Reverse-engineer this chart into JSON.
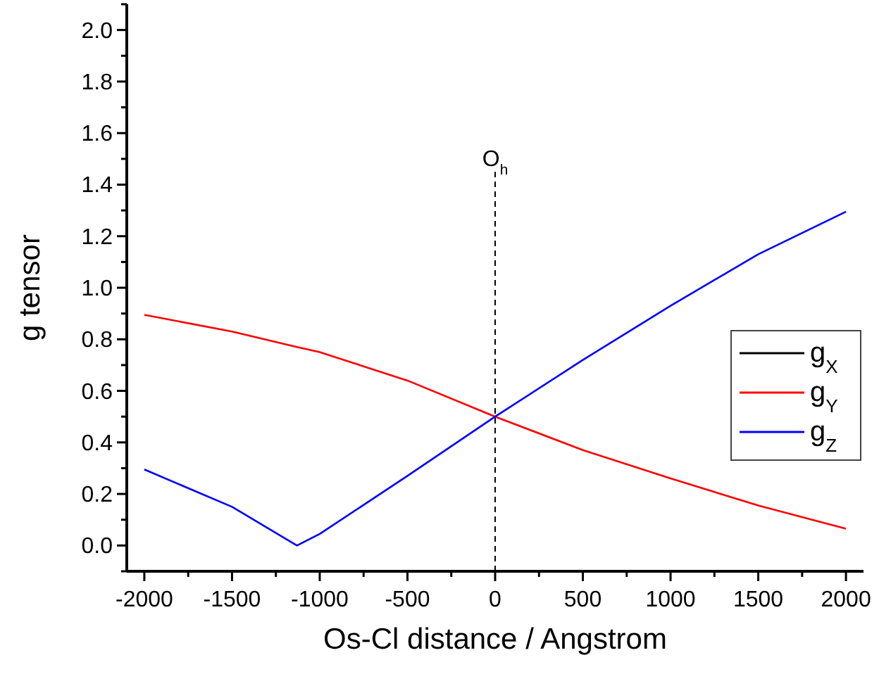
{
  "chart_data": {
    "type": "line",
    "xlabel": "Os-Cl distance / Angstrom",
    "ylabel": "g tensor",
    "x": [
      -2000,
      -1500,
      -1130,
      -1000,
      -500,
      0,
      500,
      1000,
      1500,
      2000
    ],
    "series": [
      {
        "name": "g$_{X}$",
        "color": "#000000",
        "values": [
          null,
          null,
          null,
          null,
          null,
          null,
          null,
          null,
          null,
          null
        ]
      },
      {
        "name": "g$_{Y}$",
        "color": "#ff0000",
        "values": [
          0.895,
          0.83,
          0.77,
          0.75,
          0.64,
          0.5,
          0.37,
          0.26,
          0.155,
          0.065
        ]
      },
      {
        "name": "g$_{Z}$",
        "color": "#0000ff",
        "values": [
          0.295,
          0.15,
          0.0,
          0.045,
          0.27,
          0.5,
          0.72,
          0.93,
          1.13,
          1.295
        ]
      }
    ],
    "xlim": [
      -2100,
      2100
    ],
    "xticks": [
      -2000,
      -1500,
      -1000,
      -500,
      0,
      500,
      1000,
      1500,
      2000
    ],
    "ylim": [
      -0.1,
      2.1
    ],
    "yticks": [
      {
        "value": 0,
        "label": "0.0"
      },
      0.2,
      0.4,
      0.6,
      0.8,
      {
        "value": 1,
        "label": "1.0"
      },
      1.2,
      1.4,
      1.6,
      1.8,
      {
        "value": 2,
        "label": "2.0"
      }
    ],
    "ref_lines": [
      {
        "axis": "x",
        "value": 0,
        "label": "O$_{h}$",
        "color": "#000000",
        "line_style": "dashed"
      }
    ],
    "grid": false,
    "legend": "right",
    "marker": "none",
    "line_style": "solid"
  }
}
